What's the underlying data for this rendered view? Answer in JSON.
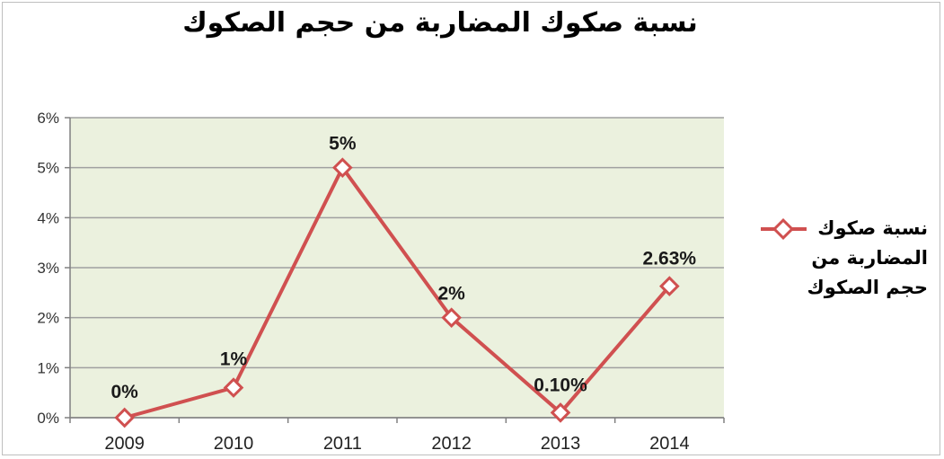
{
  "chart_data": {
    "type": "line",
    "title": "نسبة صكوك المضاربة من حجم الصكوك",
    "categories": [
      "2009",
      "2010",
      "2011",
      "2012",
      "2013",
      "2014"
    ],
    "series": [
      {
        "name": "نسبة صكوك المضاربة من حجم الصكوك",
        "values": [
          0,
          0.6,
          5,
          2,
          0.1,
          2.63
        ],
        "data_labels": [
          "0%",
          "1%",
          "5%",
          "2%",
          "0.10%",
          "2.63%"
        ],
        "color": "#d05050"
      }
    ],
    "y_tick_labels": [
      "0%",
      "1%",
      "2%",
      "3%",
      "4%",
      "5%",
      "6%"
    ],
    "ylim": [
      0,
      6
    ],
    "grid": true,
    "plot_background": "#ebf1de",
    "legend_position": "right"
  }
}
